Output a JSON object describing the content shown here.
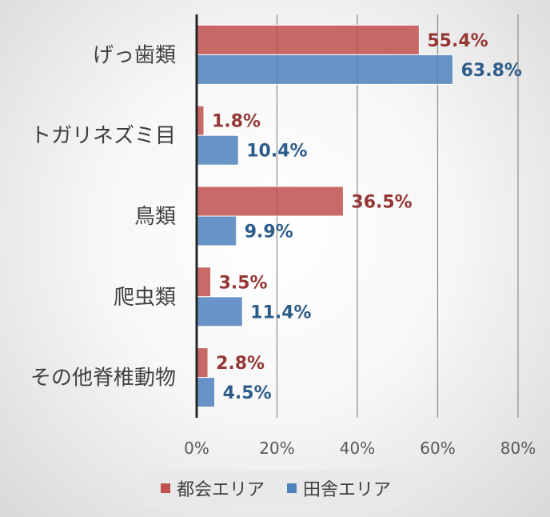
{
  "chart_data": {
    "type": "bar",
    "orientation": "horizontal",
    "categories": [
      "げっ歯類",
      "トガリネズミ目",
      "鳥類",
      "爬虫類",
      "その他脊椎動物"
    ],
    "series": [
      {
        "name": "都会エリア",
        "values": [
          55.4,
          1.8,
          36.5,
          3.5,
          2.8
        ],
        "labels": [
          "55.4%",
          "1.8%",
          "36.5%",
          "3.5%",
          "2.8%"
        ],
        "color": "#c0504d",
        "label_color": "#953735"
      },
      {
        "name": "田舎エリア",
        "values": [
          63.8,
          10.4,
          9.9,
          11.4,
          4.5
        ],
        "labels": [
          "63.8%",
          "10.4%",
          "9.9%",
          "11.4%",
          "4.5%"
        ],
        "color": "#4f81bd",
        "label_color": "#2e5c8a"
      }
    ],
    "xlim": [
      0,
      80
    ],
    "xticks": [
      0,
      20,
      40,
      60,
      80
    ],
    "xtick_labels": [
      "0%",
      "20%",
      "40%",
      "60%",
      "80%"
    ],
    "grid": true,
    "legend_position": "bottom"
  }
}
